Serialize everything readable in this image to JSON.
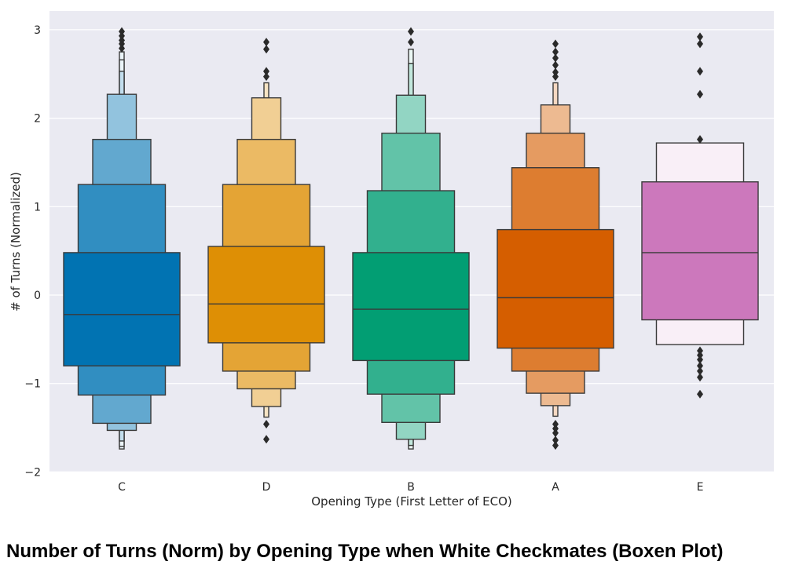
{
  "chart_data": {
    "type": "boxen",
    "title": "Number of Turns (Norm) by Opening Type when White Checkmates (Boxen Plot)",
    "xlabel": "Opening Type (First Letter of ECO)",
    "ylabel": "# of Turns (Normalized)",
    "ylim": [
      -2.2,
      3.2
    ],
    "yticks": [
      -2,
      -1,
      0,
      1,
      2,
      3
    ],
    "ytick_labels": [
      "−2",
      "−1",
      "0",
      "1",
      "2",
      "3"
    ],
    "grid": true,
    "categories": [
      "C",
      "D",
      "B",
      "A",
      "E"
    ],
    "series": [
      {
        "category": "C",
        "color": "#0173b2",
        "median": -0.22,
        "boxes": [
          [
            -0.8,
            0.48
          ],
          [
            -1.13,
            1.25
          ],
          [
            -1.45,
            1.76
          ],
          [
            -1.53,
            2.27
          ],
          [
            -1.65,
            2.53
          ],
          [
            -1.71,
            2.66
          ],
          [
            -1.74,
            2.75
          ]
        ],
        "outliers": [
          2.79,
          2.84,
          2.88,
          2.93,
          2.98
        ]
      },
      {
        "category": "D",
        "color": "#de8f05",
        "median": -0.1,
        "boxes": [
          [
            -0.54,
            0.55
          ],
          [
            -0.86,
            1.25
          ],
          [
            -1.06,
            1.76
          ],
          [
            -1.26,
            2.23
          ],
          [
            -1.38,
            2.4
          ]
        ],
        "outliers": [
          -1.46,
          -1.63,
          2.47,
          2.53,
          2.78,
          2.86
        ]
      },
      {
        "category": "B",
        "color": "#029e73",
        "median": -0.16,
        "boxes": [
          [
            -0.74,
            0.48
          ],
          [
            -1.12,
            1.18
          ],
          [
            -1.44,
            1.83
          ],
          [
            -1.63,
            2.26
          ],
          [
            -1.7,
            2.62
          ],
          [
            -1.74,
            2.78
          ]
        ],
        "outliers": [
          2.86,
          2.98
        ]
      },
      {
        "category": "A",
        "color": "#d55e00",
        "median": -0.03,
        "boxes": [
          [
            -0.6,
            0.74
          ],
          [
            -0.86,
            1.44
          ],
          [
            -1.11,
            1.83
          ],
          [
            -1.25,
            2.15
          ],
          [
            -1.37,
            2.4
          ]
        ],
        "outliers": [
          -1.46,
          -1.51,
          -1.56,
          -1.64,
          -1.7,
          2.47,
          2.52,
          2.6,
          2.68,
          2.75,
          2.84
        ]
      },
      {
        "category": "E",
        "color": "#cc78bc",
        "median": 0.48,
        "boxes": [
          [
            -0.28,
            1.28
          ],
          [
            -0.56,
            1.72
          ]
        ],
        "outliers": [
          -0.63,
          -0.68,
          -0.73,
          -0.8,
          -0.86,
          -0.93,
          -1.12,
          1.76,
          2.27,
          2.53,
          2.84,
          2.92
        ]
      }
    ]
  }
}
